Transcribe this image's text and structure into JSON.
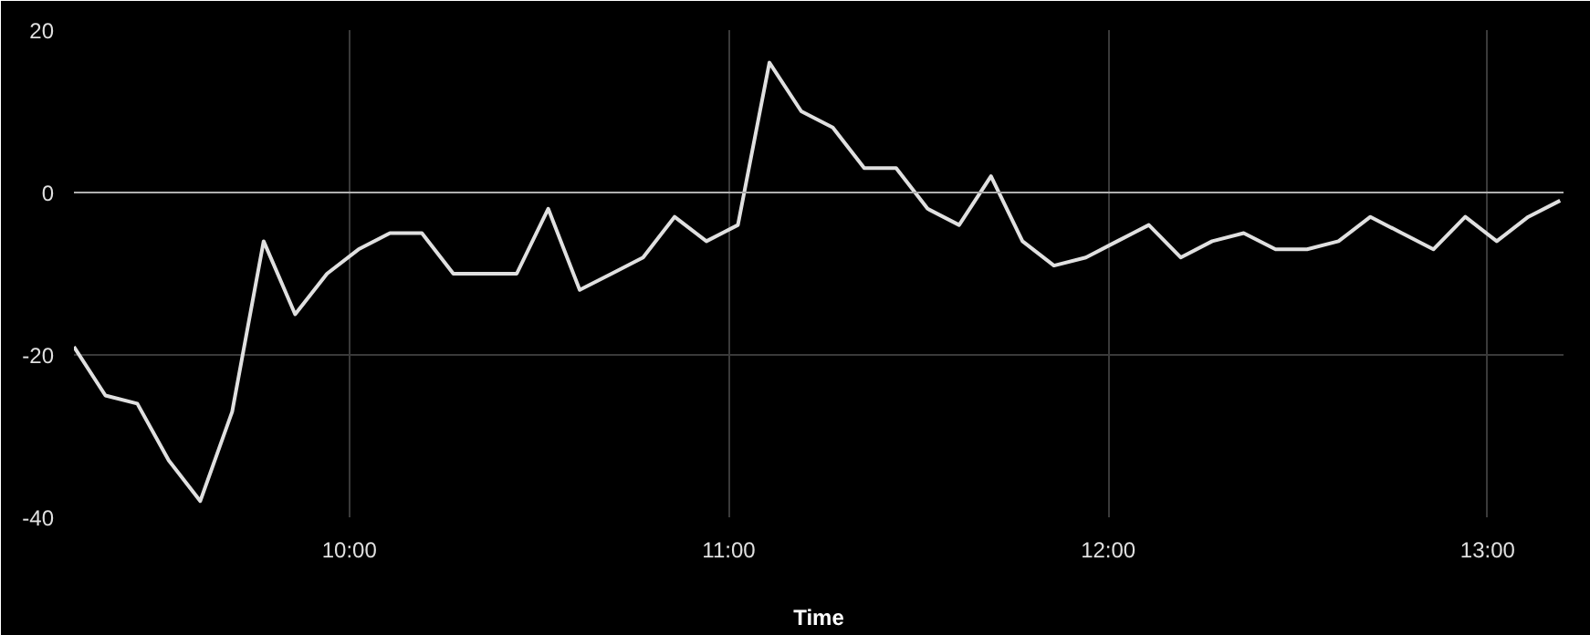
{
  "chart_data": {
    "type": "line",
    "xlabel": "Time",
    "x": [
      9.274,
      9.357,
      9.441,
      9.524,
      9.607,
      9.691,
      9.774,
      9.857,
      9.941,
      10.024,
      10.107,
      10.191,
      10.274,
      10.357,
      10.441,
      10.524,
      10.607,
      10.691,
      10.774,
      10.857,
      10.941,
      11.024,
      11.107,
      11.191,
      11.274,
      11.357,
      11.441,
      11.524,
      11.607,
      11.691,
      11.774,
      11.857,
      11.941,
      12.024,
      12.107,
      12.191,
      12.274,
      12.357,
      12.441,
      12.524,
      12.607,
      12.691,
      12.774,
      12.857,
      12.941,
      13.024,
      13.107,
      13.191
    ],
    "series": [
      {
        "color": "#e0e0e0",
        "values": [
          -19,
          -25,
          -26,
          -33,
          -38,
          -27,
          -6,
          -15,
          -10,
          -7,
          -5,
          -5,
          -10,
          -10,
          -10,
          -2,
          -12,
          -10,
          -8,
          -3,
          -6,
          -4,
          16,
          10,
          8,
          3,
          3,
          -2,
          -4,
          2,
          -6,
          -9,
          -8,
          -6,
          -4,
          -8,
          -6,
          -5,
          -7,
          -7,
          -6,
          -3,
          -5,
          -7,
          -3,
          -6,
          -3,
          -1
        ]
      }
    ],
    "xlim": [
      9.274,
      13.2
    ],
    "ylim": [
      -40,
      20
    ],
    "xticks": [
      {
        "value": 10,
        "label": "10:00"
      },
      {
        "value": 11,
        "label": "11:00"
      },
      {
        "value": 12,
        "label": "12:00"
      },
      {
        "value": 13,
        "label": "13:00"
      }
    ],
    "yticks": [
      -40,
      -20,
      0,
      20
    ],
    "ref_lines": [
      {
        "axis": "y",
        "value": 0,
        "color": "#b0b0b0"
      }
    ],
    "grid": true,
    "line_style": "solid"
  }
}
